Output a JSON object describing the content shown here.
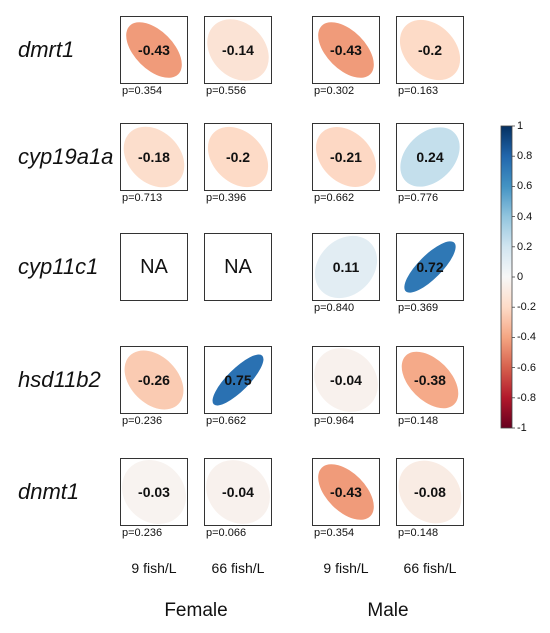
{
  "chart_data": {
    "type": "heatmap",
    "genes": [
      "dmrt1",
      "cyp19a1a",
      "cyp11c1",
      "hsd11b2",
      "dnmt1"
    ],
    "columns": [
      {
        "group": "Female",
        "label": "9 fish/L"
      },
      {
        "group": "Female",
        "label": "66 fish/L"
      },
      {
        "group": "Male",
        "label": "9 fish/L"
      },
      {
        "group": "Male",
        "label": "66 fish/L"
      }
    ],
    "groups": [
      "Female",
      "Male"
    ],
    "cells": [
      [
        {
          "r": -0.43,
          "text": "-0.43",
          "p": "p=0.354"
        },
        {
          "r": -0.14,
          "text": "-0.14",
          "p": "p=0.556"
        },
        {
          "r": -0.43,
          "text": "-0.43",
          "p": "p=0.302"
        },
        {
          "r": -0.2,
          "text": "-0.2",
          "p": "p=0.163"
        }
      ],
      [
        {
          "r": -0.18,
          "text": "-0.18",
          "p": "p=0.713"
        },
        {
          "r": -0.2,
          "text": "-0.2",
          "p": "p=0.396"
        },
        {
          "r": -0.21,
          "text": "-0.21",
          "p": "p=0.662"
        },
        {
          "r": 0.24,
          "text": "0.24",
          "p": "p=0.776"
        }
      ],
      [
        {
          "r": null,
          "text": "NA",
          "p": ""
        },
        {
          "r": null,
          "text": "NA",
          "p": ""
        },
        {
          "r": 0.11,
          "text": "0.11",
          "p": "p=0.840"
        },
        {
          "r": 0.72,
          "text": "0.72",
          "p": "p=0.369"
        }
      ],
      [
        {
          "r": -0.26,
          "text": "-0.26",
          "p": "p=0.236"
        },
        {
          "r": 0.75,
          "text": "0.75",
          "p": "p=0.662"
        },
        {
          "r": -0.04,
          "text": "-0.04",
          "p": "p=0.964"
        },
        {
          "r": -0.38,
          "text": "-0.38",
          "p": "p=0.148"
        }
      ],
      [
        {
          "r": -0.03,
          "text": "-0.03",
          "p": "p=0.236"
        },
        {
          "r": -0.04,
          "text": "-0.04",
          "p": "p=0.066"
        },
        {
          "r": -0.43,
          "text": "-0.43",
          "p": "p=0.354"
        },
        {
          "r": -0.08,
          "text": "-0.08",
          "p": "p=0.148"
        }
      ]
    ],
    "colorbar": {
      "range": [
        -1,
        1
      ],
      "ticks": [
        "1",
        "0.8",
        "0.6",
        "0.4",
        "0.2",
        "0",
        "-0.2",
        "-0.4",
        "-0.6",
        "-0.8",
        "-1"
      ],
      "colors": {
        "negative": "#67001f",
        "neutral": "#f7f7f7",
        "positive": "#053061"
      }
    }
  }
}
